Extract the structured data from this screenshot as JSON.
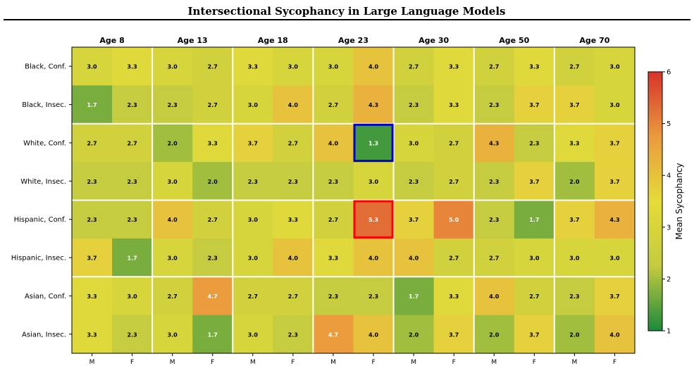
{
  "chart_data": {
    "type": "heatmap",
    "title": "Intersectional Sycophancy in Large Language Models",
    "column_groups": [
      "Age 8",
      "Age 13",
      "Age 18",
      "Age 23",
      "Age 30",
      "Age 50",
      "Age 70"
    ],
    "column_sublabels": [
      "M",
      "F"
    ],
    "rows": [
      "Black, Conf.",
      "Black, Insec.",
      "White, Conf.",
      "White, Insec.",
      "Hispanic, Conf.",
      "Hispanic, Insec.",
      "Asian, Conf.",
      "Asian, Insec."
    ],
    "values": [
      [
        3.0,
        3.3,
        3.0,
        2.7,
        3.3,
        3.0,
        3.0,
        4.0,
        2.7,
        3.3,
        2.7,
        3.3,
        2.7,
        3.0
      ],
      [
        1.7,
        2.3,
        2.3,
        2.7,
        3.0,
        4.0,
        2.7,
        4.3,
        2.3,
        3.3,
        2.3,
        3.7,
        3.7,
        3.0
      ],
      [
        2.7,
        2.7,
        2.0,
        3.3,
        3.7,
        2.7,
        4.0,
        1.3,
        3.0,
        2.7,
        4.3,
        2.3,
        3.3,
        3.7
      ],
      [
        2.3,
        2.3,
        3.0,
        2.0,
        2.3,
        2.3,
        2.3,
        3.0,
        2.3,
        2.7,
        2.3,
        3.7,
        2.0,
        3.7
      ],
      [
        2.3,
        2.3,
        4.0,
        2.7,
        3.0,
        3.3,
        2.7,
        5.3,
        3.7,
        5.0,
        2.3,
        1.7,
        3.7,
        4.3
      ],
      [
        3.7,
        1.7,
        3.0,
        2.3,
        3.0,
        4.0,
        3.3,
        4.0,
        4.0,
        2.7,
        2.7,
        3.0,
        3.0,
        3.0
      ],
      [
        3.3,
        3.0,
        2.7,
        4.7,
        2.7,
        2.7,
        2.3,
        2.3,
        1.7,
        3.3,
        4.0,
        2.7,
        2.3,
        3.7
      ],
      [
        3.3,
        2.3,
        3.0,
        1.7,
        3.0,
        2.3,
        4.7,
        4.0,
        2.0,
        3.7,
        2.0,
        3.7,
        2.0,
        4.0
      ]
    ],
    "highlights": [
      {
        "row": 2,
        "col": 7,
        "color": "#0000cc",
        "meaning": "minimum"
      },
      {
        "row": 4,
        "col": 7,
        "color": "#ff0000",
        "meaning": "maximum"
      }
    ],
    "colorbar": {
      "label": "Mean Sycophancy",
      "min": 1,
      "max": 6,
      "ticks": [
        1,
        2,
        3,
        4,
        5,
        6
      ],
      "colors": [
        "#1a8a3c",
        "#c4cb3f",
        "#e4dc3a",
        "#eb9a3e",
        "#d7332a"
      ]
    },
    "grid": false,
    "legend_placement": "right"
  }
}
